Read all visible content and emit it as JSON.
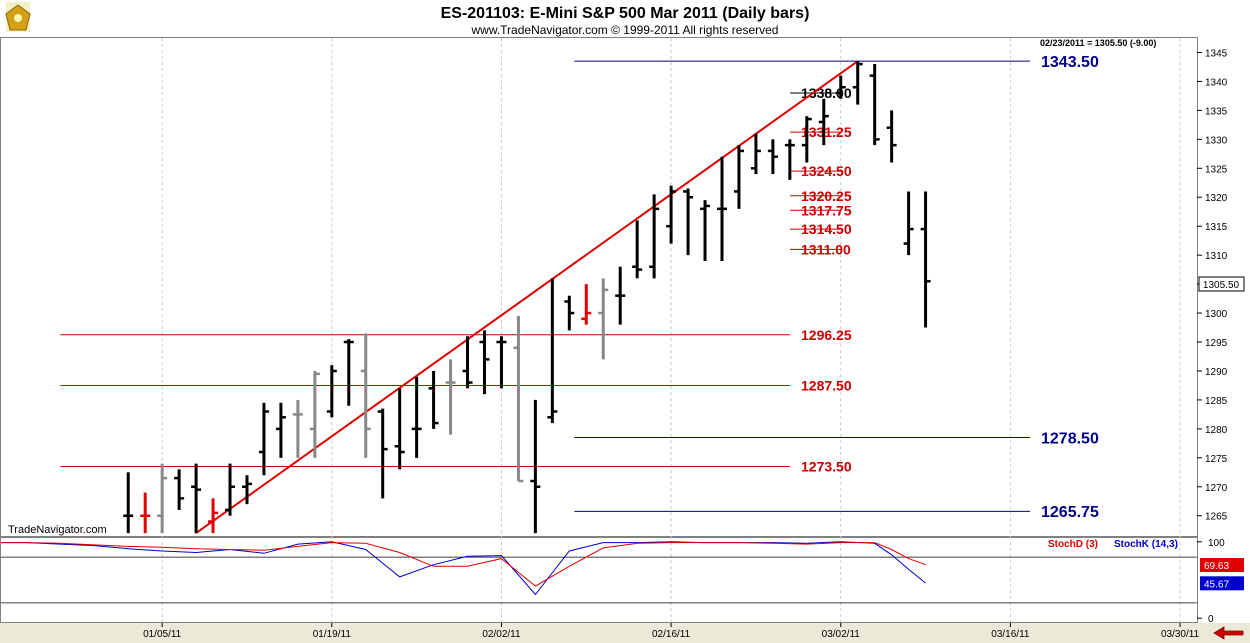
{
  "header": {
    "title": "ES-201103:  E-Mini S&P 500 Mar 2011  (Daily bars)",
    "copyright": "www.TradeNavigator.com © 1999-2011 All rights reserved"
  },
  "price_readout": "02/23/2011 = 1305.50 (-9.00)",
  "watermark": "TradeNavigator.com",
  "last_price_label": "1305.50",
  "colors": {
    "up_bar": "#000000",
    "down_bar": "#888888",
    "highlight_bar": "#e00000",
    "trendline": "#e00000",
    "red_level": "#cc0000",
    "blue_level": "#00008b",
    "black_level": "#000000",
    "stoch_d": "#e00000",
    "stoch_k": "#0000cc",
    "background": "#ffffff",
    "footer": "#ece9d8"
  },
  "chart_data": {
    "type": "ohlc",
    "title": "ES-201103:  E-Mini S&P 500 Mar 2011  (Daily bars)",
    "x_tick_labels": [
      "01/05/11",
      "01/19/11",
      "02/02/11",
      "02/16/11",
      "03/02/11",
      "03/16/11",
      "03/30/11"
    ],
    "x_ticks": [
      20,
      30,
      40,
      50,
      60,
      70,
      80
    ],
    "xlim": [
      10.5,
      81.0
    ],
    "ylim": [
      1261.5,
      1347.5
    ],
    "y_ticks": [
      1265,
      1270,
      1275,
      1280,
      1285,
      1290,
      1295,
      1300,
      1305,
      1310,
      1315,
      1320,
      1325,
      1330,
      1335,
      1340,
      1345
    ],
    "grid": true,
    "bars": [
      {
        "x": 18,
        "o": 1265,
        "h": 1272.5,
        "l": 1262,
        "c": 1265,
        "col": "up"
      },
      {
        "x": 19,
        "o": 1265,
        "h": 1269,
        "l": 1262,
        "c": 1265,
        "col": "highlight"
      },
      {
        "x": 20,
        "o": 1265,
        "h": 1274,
        "l": 1262,
        "c": 1271.5,
        "col": "down"
      },
      {
        "x": 21,
        "o": 1271.5,
        "h": 1273,
        "l": 1266,
        "c": 1268,
        "col": "up"
      },
      {
        "x": 22,
        "o": 1270,
        "h": 1274,
        "l": 1262,
        "c": 1269.5,
        "col": "up"
      },
      {
        "x": 23,
        "o": 1264,
        "h": 1268,
        "l": 1262,
        "c": 1265.5,
        "col": "highlight"
      },
      {
        "x": 24,
        "o": 1266,
        "h": 1274,
        "l": 1265,
        "c": 1270,
        "col": "up"
      },
      {
        "x": 25,
        "o": 1270,
        "h": 1272,
        "l": 1267,
        "c": 1270.5,
        "col": "up"
      },
      {
        "x": 26,
        "o": 1276,
        "h": 1284.5,
        "l": 1272,
        "c": 1283,
        "col": "up"
      },
      {
        "x": 27,
        "o": 1280,
        "h": 1284.5,
        "l": 1275,
        "c": 1282,
        "col": "up"
      },
      {
        "x": 28,
        "o": 1282.5,
        "h": 1285,
        "l": 1275,
        "c": 1282.5,
        "col": "down"
      },
      {
        "x": 29,
        "o": 1280,
        "h": 1290,
        "l": 1275,
        "c": 1289.5,
        "col": "down"
      },
      {
        "x": 30,
        "o": 1283,
        "h": 1291,
        "l": 1282,
        "c": 1290,
        "col": "up"
      },
      {
        "x": 31,
        "o": 1295,
        "h": 1295.5,
        "l": 1284,
        "c": 1295,
        "col": "up"
      },
      {
        "x": 32,
        "o": 1290,
        "h": 1296.5,
        "l": 1275,
        "c": 1280,
        "col": "down"
      },
      {
        "x": 33,
        "o": 1283,
        "h": 1283.5,
        "l": 1268,
        "c": 1276.5,
        "col": "up"
      },
      {
        "x": 34,
        "o": 1277,
        "h": 1287,
        "l": 1273,
        "c": 1276,
        "col": "up"
      },
      {
        "x": 35,
        "o": 1280,
        "h": 1289,
        "l": 1275,
        "c": 1280,
        "col": "up"
      },
      {
        "x": 36,
        "o": 1287,
        "h": 1290,
        "l": 1280,
        "c": 1281,
        "col": "up"
      },
      {
        "x": 37,
        "o": 1288,
        "h": 1292,
        "l": 1279,
        "c": 1288,
        "col": "down"
      },
      {
        "x": 38,
        "o": 1290,
        "h": 1296,
        "l": 1287,
        "c": 1288,
        "col": "up"
      },
      {
        "x": 39,
        "o": 1295,
        "h": 1297,
        "l": 1286,
        "c": 1292,
        "col": "up"
      },
      {
        "x": 40,
        "o": 1295,
        "h": 1296,
        "l": 1287,
        "c": 1295,
        "col": "up"
      },
      {
        "x": 41,
        "o": 1294,
        "h": 1299.5,
        "l": 1271,
        "c": 1271,
        "col": "down"
      },
      {
        "x": 42,
        "o": 1271,
        "h": 1285,
        "l": 1262,
        "c": 1270,
        "col": "up"
      },
      {
        "x": 43,
        "o": 1282,
        "h": 1306,
        "l": 1281,
        "c": 1283,
        "col": "up"
      },
      {
        "x": 44,
        "o": 1302,
        "h": 1303,
        "l": 1297,
        "c": 1300,
        "col": "up"
      },
      {
        "x": 45,
        "o": 1299,
        "h": 1305,
        "l": 1298,
        "c": 1300,
        "col": "highlight"
      },
      {
        "x": 46,
        "o": 1300,
        "h": 1306,
        "l": 1292,
        "c": 1304,
        "col": "down"
      },
      {
        "x": 47,
        "o": 1303,
        "h": 1308,
        "l": 1298,
        "c": 1303,
        "col": "up"
      },
      {
        "x": 48,
        "o": 1308,
        "h": 1316,
        "l": 1306,
        "c": 1307.5,
        "col": "up"
      },
      {
        "x": 49,
        "o": 1308,
        "h": 1320.5,
        "l": 1306,
        "c": 1318,
        "col": "up"
      },
      {
        "x": 50,
        "o": 1315,
        "h": 1322,
        "l": 1312,
        "c": 1321,
        "col": "up"
      },
      {
        "x": 51,
        "o": 1321,
        "h": 1321.5,
        "l": 1310,
        "c": 1320,
        "col": "up"
      },
      {
        "x": 52,
        "o": 1318,
        "h": 1319.5,
        "l": 1309,
        "c": 1318.5,
        "col": "up"
      },
      {
        "x": 53,
        "o": 1318,
        "h": 1327,
        "l": 1309,
        "c": 1318,
        "col": "up"
      },
      {
        "x": 54,
        "o": 1321,
        "h": 1329,
        "l": 1318,
        "c": 1328,
        "col": "up"
      },
      {
        "x": 55,
        "o": 1325,
        "h": 1331,
        "l": 1324,
        "c": 1328,
        "col": "up"
      },
      {
        "x": 56,
        "o": 1328,
        "h": 1330,
        "l": 1324,
        "c": 1327,
        "col": "up"
      },
      {
        "x": 57,
        "o": 1329,
        "h": 1330,
        "l": 1323,
        "c": 1329,
        "col": "up"
      },
      {
        "x": 58,
        "o": 1329,
        "h": 1334,
        "l": 1326,
        "c": 1333.5,
        "col": "up"
      },
      {
        "x": 59,
        "o": 1333,
        "h": 1337,
        "l": 1329,
        "c": 1334,
        "col": "up"
      },
      {
        "x": 60,
        "o": 1338,
        "h": 1341,
        "l": 1337,
        "c": 1339,
        "col": "up"
      },
      {
        "x": 61,
        "o": 1339,
        "h": 1343.5,
        "l": 1336,
        "c": 1343,
        "col": "up"
      },
      {
        "x": 62,
        "o": 1341,
        "h": 1343,
        "l": 1329,
        "c": 1330,
        "col": "up"
      },
      {
        "x": 63,
        "o": 1332,
        "h": 1335,
        "l": 1326,
        "c": 1329,
        "col": "up"
      },
      {
        "x": 64,
        "o": 1312,
        "h": 1321,
        "l": 1310,
        "c": 1314.5,
        "col": "up"
      },
      {
        "x": 65,
        "o": 1314.5,
        "h": 1321,
        "l": 1297.5,
        "c": 1305.5,
        "col": "up"
      }
    ],
    "trendlines": [
      {
        "x1": 22,
        "y1": 1262,
        "x2": 61,
        "y2": 1343.5,
        "color": "red"
      }
    ],
    "levels": [
      {
        "value": 1343.5,
        "label": "1343.50",
        "color": "blue",
        "x_start": 44.3
      },
      {
        "value": 1338.0,
        "label": "1338.00",
        "color": "black",
        "x_start": 60
      },
      {
        "value": 1331.25,
        "label": "1331.25",
        "color": "red",
        "x_start": 60
      },
      {
        "value": 1324.5,
        "label": "1324.50",
        "color": "red",
        "x_start": 60
      },
      {
        "value": 1320.25,
        "label": "1320.25",
        "color": "red",
        "x_start": 60
      },
      {
        "value": 1317.75,
        "label": "1317.75",
        "color": "red",
        "x_start": 60
      },
      {
        "value": 1314.5,
        "label": "1314.50",
        "color": "red",
        "x_start": 60
      },
      {
        "value": 1311.0,
        "label": "1311.00",
        "color": "red",
        "x_start": 60
      },
      {
        "value": 1296.25,
        "label": "1296.25",
        "color": "red",
        "x_start": 14.0
      },
      {
        "value": 1287.5,
        "label": "1287.50",
        "color": "red",
        "x_start": 14.0
      },
      {
        "value": 1278.5,
        "label": "1278.50",
        "color": "blue",
        "x_start": 44.3
      },
      {
        "value": 1273.5,
        "label": "1273.50",
        "color": "red",
        "x_start": 14.0
      },
      {
        "value": 1265.75,
        "label": "1265.75",
        "color": "blue",
        "x_start": 44.3
      }
    ],
    "indicator": {
      "name_d": "StochD (3)",
      "name_k": "StochK (14,3)",
      "y_ticks": [
        0,
        100
      ],
      "ylim": [
        -5,
        105
      ],
      "ref_lines": [
        20,
        80
      ],
      "last_d": "69.63",
      "last_k": "45.67",
      "stoch_d": [
        [
          10.5,
          99
        ],
        [
          12,
          99
        ],
        [
          14,
          98
        ],
        [
          16,
          96
        ],
        [
          18,
          94
        ],
        [
          20,
          93
        ],
        [
          22,
          91
        ],
        [
          24,
          90
        ],
        [
          26,
          89
        ],
        [
          28,
          94
        ],
        [
          30,
          99
        ],
        [
          32,
          98
        ],
        [
          34,
          86
        ],
        [
          36,
          68
        ],
        [
          38,
          68
        ],
        [
          40,
          78
        ],
        [
          42,
          42
        ],
        [
          44,
          68
        ],
        [
          46,
          92
        ],
        [
          48,
          98
        ],
        [
          50,
          99
        ],
        [
          52,
          99
        ],
        [
          54,
          99
        ],
        [
          56,
          98
        ],
        [
          58,
          97
        ],
        [
          60,
          99
        ],
        [
          62,
          99
        ],
        [
          63,
          90
        ],
        [
          64,
          78
        ],
        [
          65,
          70
        ]
      ],
      "stoch_k": [
        [
          10.5,
          99
        ],
        [
          12,
          99
        ],
        [
          14,
          97
        ],
        [
          16,
          95
        ],
        [
          18,
          91
        ],
        [
          20,
          88
        ],
        [
          22,
          86
        ],
        [
          24,
          90
        ],
        [
          26,
          85
        ],
        [
          28,
          97
        ],
        [
          30,
          100
        ],
        [
          32,
          90
        ],
        [
          34,
          54
        ],
        [
          36,
          70
        ],
        [
          38,
          81
        ],
        [
          40,
          82
        ],
        [
          42,
          31
        ],
        [
          44,
          88
        ],
        [
          46,
          99
        ],
        [
          48,
          99
        ],
        [
          50,
          100
        ],
        [
          52,
          99
        ],
        [
          54,
          99
        ],
        [
          56,
          99
        ],
        [
          58,
          98
        ],
        [
          60,
          100
        ],
        [
          62,
          98
        ],
        [
          63,
          83
        ],
        [
          64,
          64
        ],
        [
          65,
          46
        ]
      ]
    }
  }
}
